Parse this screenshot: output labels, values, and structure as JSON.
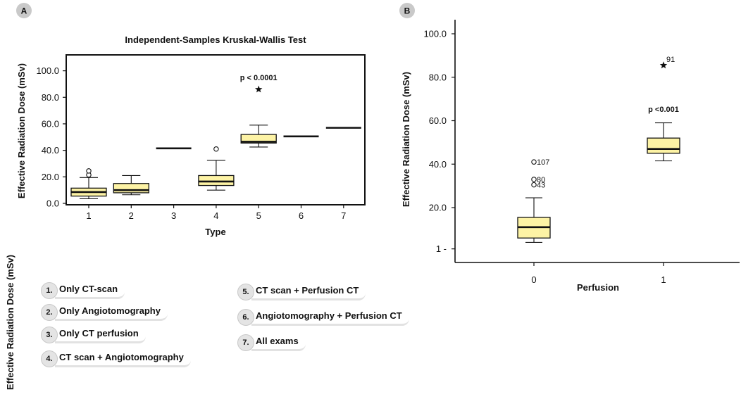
{
  "panels": {
    "a": {
      "badge": "A",
      "title": "Independent-Samples Kruskal-Wallis Test"
    },
    "b": {
      "badge": "B"
    }
  },
  "side_label": "Effective Radiation Dose (mSv)",
  "legend": {
    "items": [
      {
        "num": "1.",
        "label": "Only CT-scan"
      },
      {
        "num": "2.",
        "label": "Only Angiotomography"
      },
      {
        "num": "3.",
        "label": "Only CT perfusion"
      },
      {
        "num": "4.",
        "label": "CT scan + Angiotomography"
      },
      {
        "num": "5.",
        "label": "CT scan + Perfusion CT"
      },
      {
        "num": "6.",
        "label": "Angiotomography + Perfusion CT"
      },
      {
        "num": "7.",
        "label": "All exams"
      }
    ]
  },
  "colors": {
    "box_fill": "#fdf3a5",
    "badge": "#c9c9c9",
    "legend_accent": "#e2e2e2"
  },
  "chart_data": [
    {
      "type": "boxplot",
      "title": "Independent-Samples Kruskal-Wallis Test",
      "xlabel": "Type",
      "ylabel": "Effective Radiation Dose (mSv)",
      "ylim": [
        0,
        112
      ],
      "yticks": [
        "0.0",
        "20.0",
        "40.0",
        "60.0",
        "80.0",
        "100.0"
      ],
      "categories": [
        "1",
        "2",
        "3",
        "4",
        "5",
        "6",
        "7"
      ],
      "boxes": [
        {
          "cat": "1",
          "min": 3.5,
          "q1": 5.5,
          "median": 8.5,
          "q3": 11.5,
          "max": 19.5,
          "outliers": [
            21.5,
            24.5
          ],
          "extremes": []
        },
        {
          "cat": "2",
          "min": 6.5,
          "q1": 8.0,
          "median": 10.0,
          "q3": 15.0,
          "max": 21.0,
          "outliers": [],
          "extremes": []
        },
        {
          "cat": "3",
          "min": 41.5,
          "q1": 41.5,
          "median": 41.5,
          "q3": 41.5,
          "max": 41.5,
          "outliers": [],
          "extremes": []
        },
        {
          "cat": "4",
          "min": 10.0,
          "q1": 13.5,
          "median": 16.5,
          "q3": 21.0,
          "max": 32.5,
          "outliers": [
            41.0
          ],
          "extremes": []
        },
        {
          "cat": "5",
          "min": 42.5,
          "q1": 45.5,
          "median": 46.5,
          "q3": 52.0,
          "max": 59.0,
          "outliers": [],
          "extremes": [
            86.0
          ]
        },
        {
          "cat": "6",
          "min": 50.5,
          "q1": 50.5,
          "median": 50.5,
          "q3": 50.5,
          "max": 50.5,
          "outliers": [],
          "extremes": []
        },
        {
          "cat": "7",
          "min": 57.0,
          "q1": 57.0,
          "median": 57.0,
          "q3": 57.0,
          "max": 57.0,
          "outliers": [],
          "extremes": []
        }
      ],
      "annotations": [
        {
          "text": "p < 0.0001",
          "cat": "5",
          "y": 93
        }
      ]
    },
    {
      "type": "boxplot",
      "xlabel": "Perfusion",
      "ylabel": "Effective Radiation Dose (mSv)",
      "yticks": [
        {
          "value": 1,
          "label": "1 -"
        },
        {
          "value": 20,
          "label": "20.0"
        },
        {
          "value": 40,
          "label": "40.0"
        },
        {
          "value": 60,
          "label": "60.0"
        },
        {
          "value": 80,
          "label": "80.0"
        },
        {
          "value": 100,
          "label": "100.0"
        }
      ],
      "categories": [
        "0",
        "1"
      ],
      "boxes": [
        {
          "cat": "0",
          "min": 4.0,
          "q1": 6.0,
          "median": 11.0,
          "q3": 15.5,
          "max": 24.5,
          "outliers": [
            {
              "value": 30.5,
              "label": "43"
            },
            {
              "value": 33.0,
              "label": "80"
            },
            {
              "value": 41.0,
              "label": "107"
            }
          ],
          "extremes": []
        },
        {
          "cat": "1",
          "min": 41.5,
          "q1": 45.0,
          "median": 47.0,
          "q3": 52.0,
          "max": 59.0,
          "outliers": [],
          "extremes": [
            {
              "value": 85.5,
              "label": "91"
            }
          ]
        }
      ],
      "annotations": [
        {
          "text": "p <0.001",
          "cat": "1",
          "y": 64
        }
      ]
    }
  ]
}
